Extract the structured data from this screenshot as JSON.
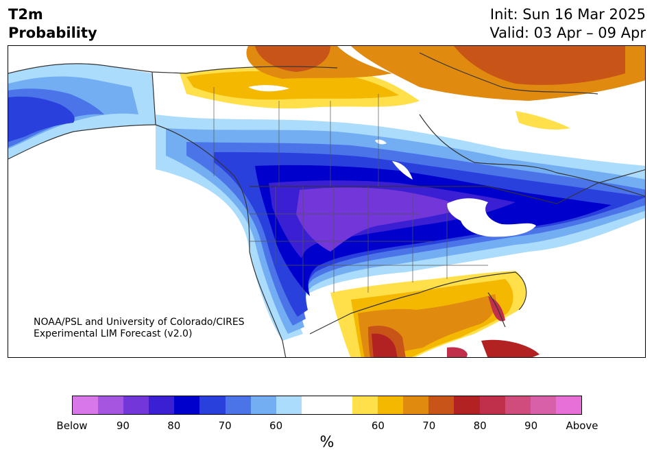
{
  "title": {
    "line1": "T2m",
    "line2": "Probability"
  },
  "init": "Init: Sun 16 Mar 2025",
  "valid": "Valid: 03 Apr – 09 Apr",
  "credit": {
    "line1": "NOAA/PSL and University of Colorado/CIRES",
    "line2": "Experimental LIM Forecast (v2.0)"
  },
  "colorbar": {
    "colors": [
      "#d878e8",
      "#a555e0",
      "#7236d9",
      "#3b1fd3",
      "#0000cc",
      "#2a40dd",
      "#4a74e8",
      "#74aef2",
      "#acdcfb",
      "#ffffff",
      "#ffffff",
      "#ffe04a",
      "#f4b800",
      "#e08a10",
      "#c85418",
      "#b22222",
      "#c0304a",
      "#d04c7c",
      "#d860a8",
      "#e670d8"
    ],
    "tick_labels": [
      "Below",
      "90",
      "80",
      "70",
      "60",
      "60",
      "70",
      "80",
      "90",
      "Above"
    ],
    "unit": "%"
  },
  "colors": {
    "below_light": "#acdcfb",
    "below_mid": "#4a74e8",
    "below_strong": "#0000cc",
    "below_max": "#7236d9",
    "above_light": "#ffe04a",
    "above_mid": "#e08a10",
    "above_strong": "#c85418",
    "above_max": "#b22222"
  }
}
